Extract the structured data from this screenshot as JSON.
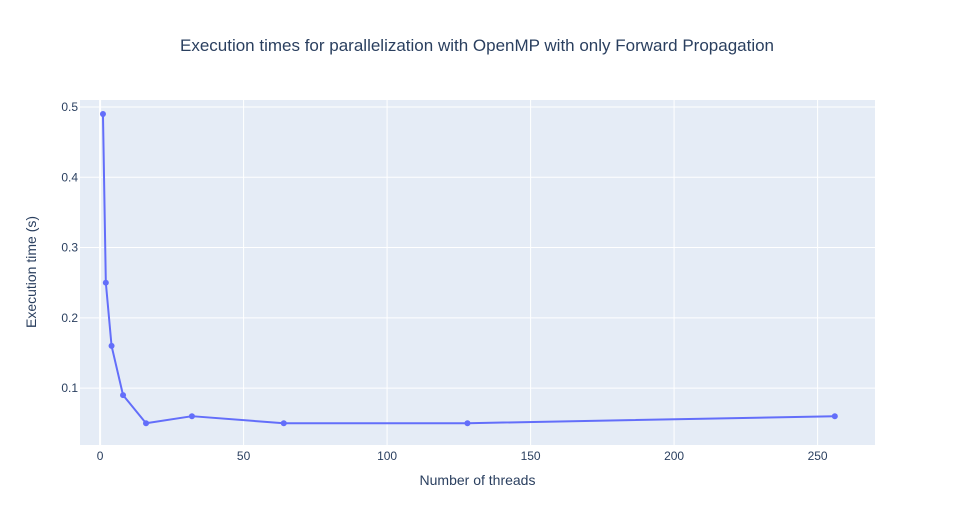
{
  "chart_data": {
    "type": "line",
    "title": "Execution times for parallelization with OpenMP with only Forward Propagation",
    "xlabel": "Number of threads",
    "ylabel": "Execution time (s)",
    "xlim": [
      -7,
      270
    ],
    "ylim": [
      0.019,
      0.51
    ],
    "xticks": [
      0,
      50,
      100,
      150,
      200,
      250
    ],
    "yticks": [
      0.1,
      0.2,
      0.3,
      0.4,
      0.5
    ],
    "xtick_labels": [
      "0",
      "50",
      "100",
      "150",
      "200",
      "250"
    ],
    "ytick_labels": [
      "0.1",
      "0.2",
      "0.3",
      "0.4",
      "0.5"
    ],
    "grid": true,
    "legend": "none",
    "colors": {
      "plot_bg": "#e5ecf6",
      "line": "#636efa",
      "text": "#2a3f5f"
    },
    "series": [
      {
        "x": [
          1,
          2,
          4,
          8,
          16,
          32,
          64,
          128,
          256
        ],
        "y": [
          0.49,
          0.25,
          0.16,
          0.09,
          0.05,
          0.06,
          0.05,
          0.05,
          0.06
        ]
      }
    ]
  }
}
